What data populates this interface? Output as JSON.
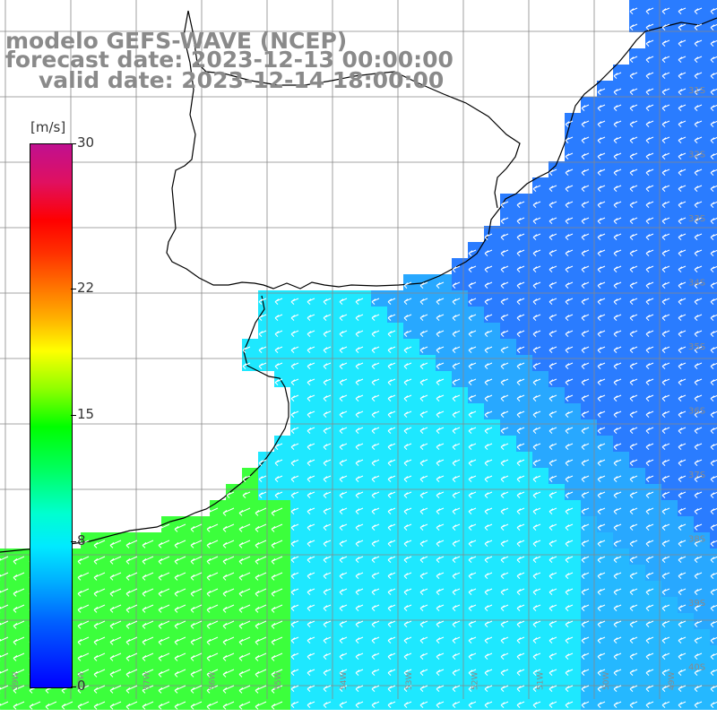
{
  "title": {
    "model": "modelo GEFS-WAVE (NCEP)",
    "forecast_date": "forecast date: 2023-12-13 00:00:00",
    "valid_date": "valid date: 2023-12-14 18:00:00"
  },
  "colorbar": {
    "unit": "[m/s]",
    "ticks": [
      {
        "value": 30,
        "label": "30"
      },
      {
        "value": 22,
        "label": "22"
      },
      {
        "value": 15,
        "label": "15"
      },
      {
        "value": 8,
        "label": "8"
      },
      {
        "value": 0,
        "label": "0"
      }
    ],
    "range": [
      0,
      30
    ]
  },
  "map": {
    "lat_labels": [
      "31S",
      "32S",
      "33S",
      "34S",
      "35S",
      "36S",
      "37S",
      "38S",
      "39S",
      "40S",
      "41S"
    ],
    "lon_labels": [
      "59W",
      "58W",
      "57W",
      "56W",
      "55W",
      "54W",
      "53W",
      "52W",
      "51W",
      "50W",
      "49W"
    ],
    "colors": {
      "ocean_blue": "#2a7cff",
      "ocean_cyan": "#1ee8ff",
      "shelf_green": "#3cff3c",
      "land": "#ffffff",
      "grid": "#888888",
      "coast": "#000000",
      "arrows": "#ffffff"
    }
  }
}
